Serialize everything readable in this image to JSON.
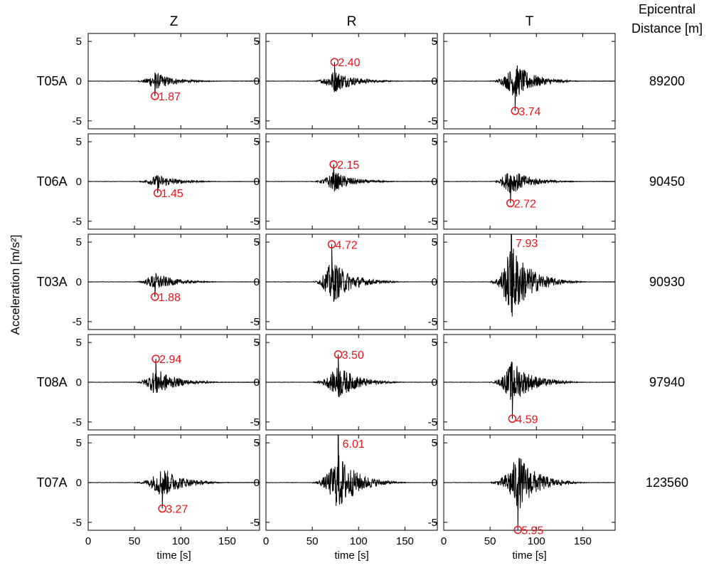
{
  "chart_data": {
    "type": "line",
    "title": "",
    "xlabel": "time [s]",
    "ylabel": "Acceleration [m/s²]",
    "xlim": [
      0,
      185
    ],
    "ylim": [
      -6,
      6
    ],
    "xticks": [
      0,
      50,
      100,
      150
    ],
    "yticks": [
      -5,
      0,
      5
    ],
    "columns": [
      "Z",
      "R",
      "T"
    ],
    "distance_header": [
      "Epicentral",
      "Distance [m]"
    ],
    "colors": {
      "trace": "#000000",
      "peak": "#e8141b"
    },
    "rows": [
      {
        "station": "T05A",
        "distance": "89200",
        "peaks": [
          {
            "component": "Z",
            "time": 72,
            "value": -1.87,
            "label": "1.87"
          },
          {
            "component": "R",
            "time": 74,
            "value": 2.4,
            "label": "2.40"
          },
          {
            "component": "T",
            "time": 77,
            "value": -3.74,
            "label": "3.74"
          }
        ]
      },
      {
        "station": "T06A",
        "distance": "90450",
        "peaks": [
          {
            "component": "Z",
            "time": 75,
            "value": -1.45,
            "label": "1.45"
          },
          {
            "component": "R",
            "time": 73,
            "value": 2.15,
            "label": "2.15"
          },
          {
            "component": "T",
            "time": 72,
            "value": -2.72,
            "label": "2.72"
          }
        ]
      },
      {
        "station": "T03A",
        "distance": "90930",
        "peaks": [
          {
            "component": "Z",
            "time": 72,
            "value": -1.88,
            "label": "1.88"
          },
          {
            "component": "R",
            "time": 71,
            "value": 4.72,
            "label": "4.72"
          },
          {
            "component": "T",
            "time": 73,
            "value": 7.93,
            "label": "7.93"
          }
        ]
      },
      {
        "station": "T08A",
        "distance": "97940",
        "peaks": [
          {
            "component": "Z",
            "time": 73,
            "value": 2.94,
            "label": "2.94"
          },
          {
            "component": "R",
            "time": 78,
            "value": 3.5,
            "label": "3.50"
          },
          {
            "component": "T",
            "time": 74,
            "value": -4.59,
            "label": "4.59"
          }
        ]
      },
      {
        "station": "T07A",
        "distance": "123560",
        "peaks": [
          {
            "component": "Z",
            "time": 80,
            "value": -3.27,
            "label": "3.27"
          },
          {
            "component": "R",
            "time": 78,
            "value": 6.01,
            "label": "6.01"
          },
          {
            "component": "T",
            "time": 80,
            "value": -5.95,
            "label": "5.95"
          }
        ]
      }
    ]
  }
}
